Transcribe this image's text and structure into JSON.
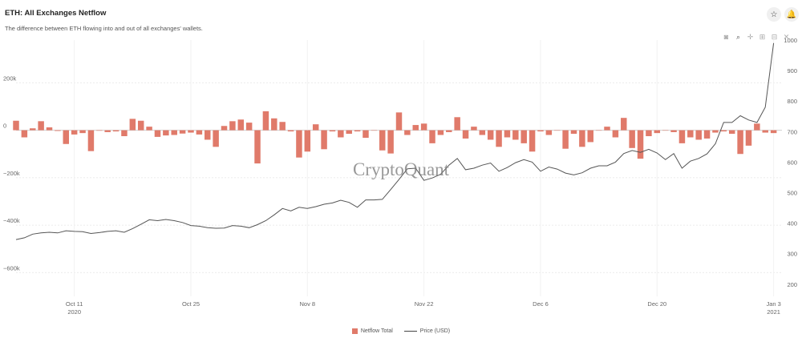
{
  "header": {
    "title": "ETH: All Exchanges Netflow",
    "subtitle": "The difference between ETH flowing into and out of all exchanges' wallets.",
    "star_icon": "star-icon",
    "bell_icon": "bell-icon"
  },
  "toolbar": {
    "icons": [
      "camera-icon",
      "zoom-icon",
      "pan-icon",
      "zoom-in-icon",
      "zoom-out-icon",
      "reset-icon"
    ]
  },
  "watermark": "CryptoQuant",
  "chart_data": {
    "type": "bar",
    "x_start": "2020-10-04",
    "x_end": "2021-01-04",
    "x_ticks": [
      {
        "date": "2020-10-11",
        "label": "Oct 11",
        "sublabel": "2020"
      },
      {
        "date": "2020-10-25",
        "label": "Oct 25",
        "sublabel": ""
      },
      {
        "date": "2020-11-08",
        "label": "Nov 8",
        "sublabel": ""
      },
      {
        "date": "2020-11-22",
        "label": "Nov 22",
        "sublabel": ""
      },
      {
        "date": "2020-12-06",
        "label": "Dec 6",
        "sublabel": ""
      },
      {
        "date": "2020-12-20",
        "label": "Dec 20",
        "sublabel": ""
      },
      {
        "date": "2021-01-03",
        "label": "Jan 3",
        "sublabel": "2021"
      }
    ],
    "y_left": {
      "min": -700000,
      "max": 380000,
      "ticks": [
        200000,
        0,
        -200000,
        -400000,
        -600000
      ],
      "tick_labels": [
        "200k",
        "0",
        "−200k",
        "−400k",
        "−600k"
      ]
    },
    "y_right": {
      "min": 160,
      "max": 1000,
      "ticks": [
        1000,
        900,
        800,
        700,
        600,
        500,
        400,
        300,
        200
      ],
      "tick_labels": [
        "1000",
        "900",
        "800",
        "700",
        "600",
        "500",
        "400",
        "300",
        "200"
      ]
    },
    "grid": true,
    "legend_position": "bottom",
    "series": [
      {
        "name": "Netflow Total",
        "kind": "bar",
        "axis": "left",
        "color": "#e07a6a",
        "start_date": "2020-10-04",
        "values": [
          40000,
          -30000,
          8000,
          38000,
          12000,
          -3000,
          -58000,
          -18000,
          -12000,
          -88000,
          -2000,
          -8000,
          -5000,
          -25000,
          48000,
          40000,
          15000,
          -28000,
          -22000,
          -20000,
          -14000,
          -10000,
          -18000,
          -40000,
          -70000,
          18000,
          38000,
          45000,
          32000,
          -140000,
          80000,
          50000,
          35000,
          -5000,
          -115000,
          -90000,
          25000,
          -80000,
          -5000,
          -30000,
          -15000,
          -5000,
          -32000,
          0,
          -85000,
          -98000,
          75000,
          -20000,
          22000,
          28000,
          -55000,
          -20000,
          -8000,
          55000,
          -35000,
          15000,
          -20000,
          -40000,
          -70000,
          -30000,
          -40000,
          -55000,
          -90000,
          -5000,
          -20000,
          0,
          -78000,
          -15000,
          -70000,
          -50000,
          0,
          15000,
          -30000,
          52000,
          -75000,
          -120000,
          -25000,
          -12000,
          0,
          -8000,
          -55000,
          -30000,
          -40000,
          -35000,
          -10000,
          -5000,
          -15000,
          -100000,
          -65000,
          28000,
          -10000,
          -12000
        ]
      },
      {
        "name": "Price (USD)",
        "kind": "line",
        "axis": "right",
        "color": "#555555",
        "start_date": "2020-10-04",
        "values": [
          346,
          352,
          364,
          368,
          370,
          368,
          375,
          373,
          372,
          366,
          369,
          373,
          375,
          370,
          382,
          396,
          411,
          408,
          412,
          408,
          402,
          392,
          390,
          385,
          383,
          384,
          392,
          390,
          385,
          395,
          408,
          427,
          448,
          440,
          452,
          448,
          454,
          462,
          466,
          475,
          468,
          452,
          476,
          476,
          478,
          510,
          543,
          578,
          580,
          540,
          548,
          560,
          590,
          612,
          575,
          580,
          590,
          597,
          570,
          582,
          598,
          608,
          600,
          570,
          584,
          577,
          564,
          558,
          565,
          580,
          588,
          588,
          600,
          628,
          638,
          632,
          642,
          630,
          608,
          628,
          580,
          603,
          612,
          627,
          660,
          730,
          730,
          752,
          738,
          730,
          780,
          990
        ]
      }
    ]
  }
}
